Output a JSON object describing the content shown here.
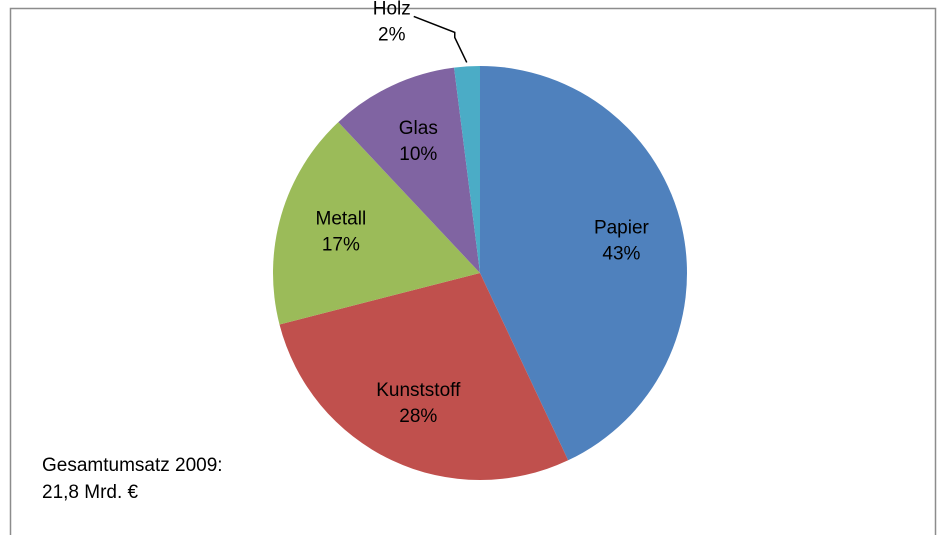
{
  "chart_data": {
    "type": "pie",
    "categories": [
      "Papier",
      "Kunststoff",
      "Metall",
      "Glas",
      "Holz"
    ],
    "values": [
      43,
      28,
      17,
      10,
      2
    ],
    "value_labels": [
      "43%",
      "28%",
      "17%",
      "10%",
      "2%"
    ],
    "colors": [
      "#4f81bd",
      "#c0504d",
      "#9bbb59",
      "#8064a2",
      "#4bacc6"
    ],
    "annotations": [
      "Gesamtumsatz 2009:",
      "21,8 Mrd. €"
    ]
  }
}
